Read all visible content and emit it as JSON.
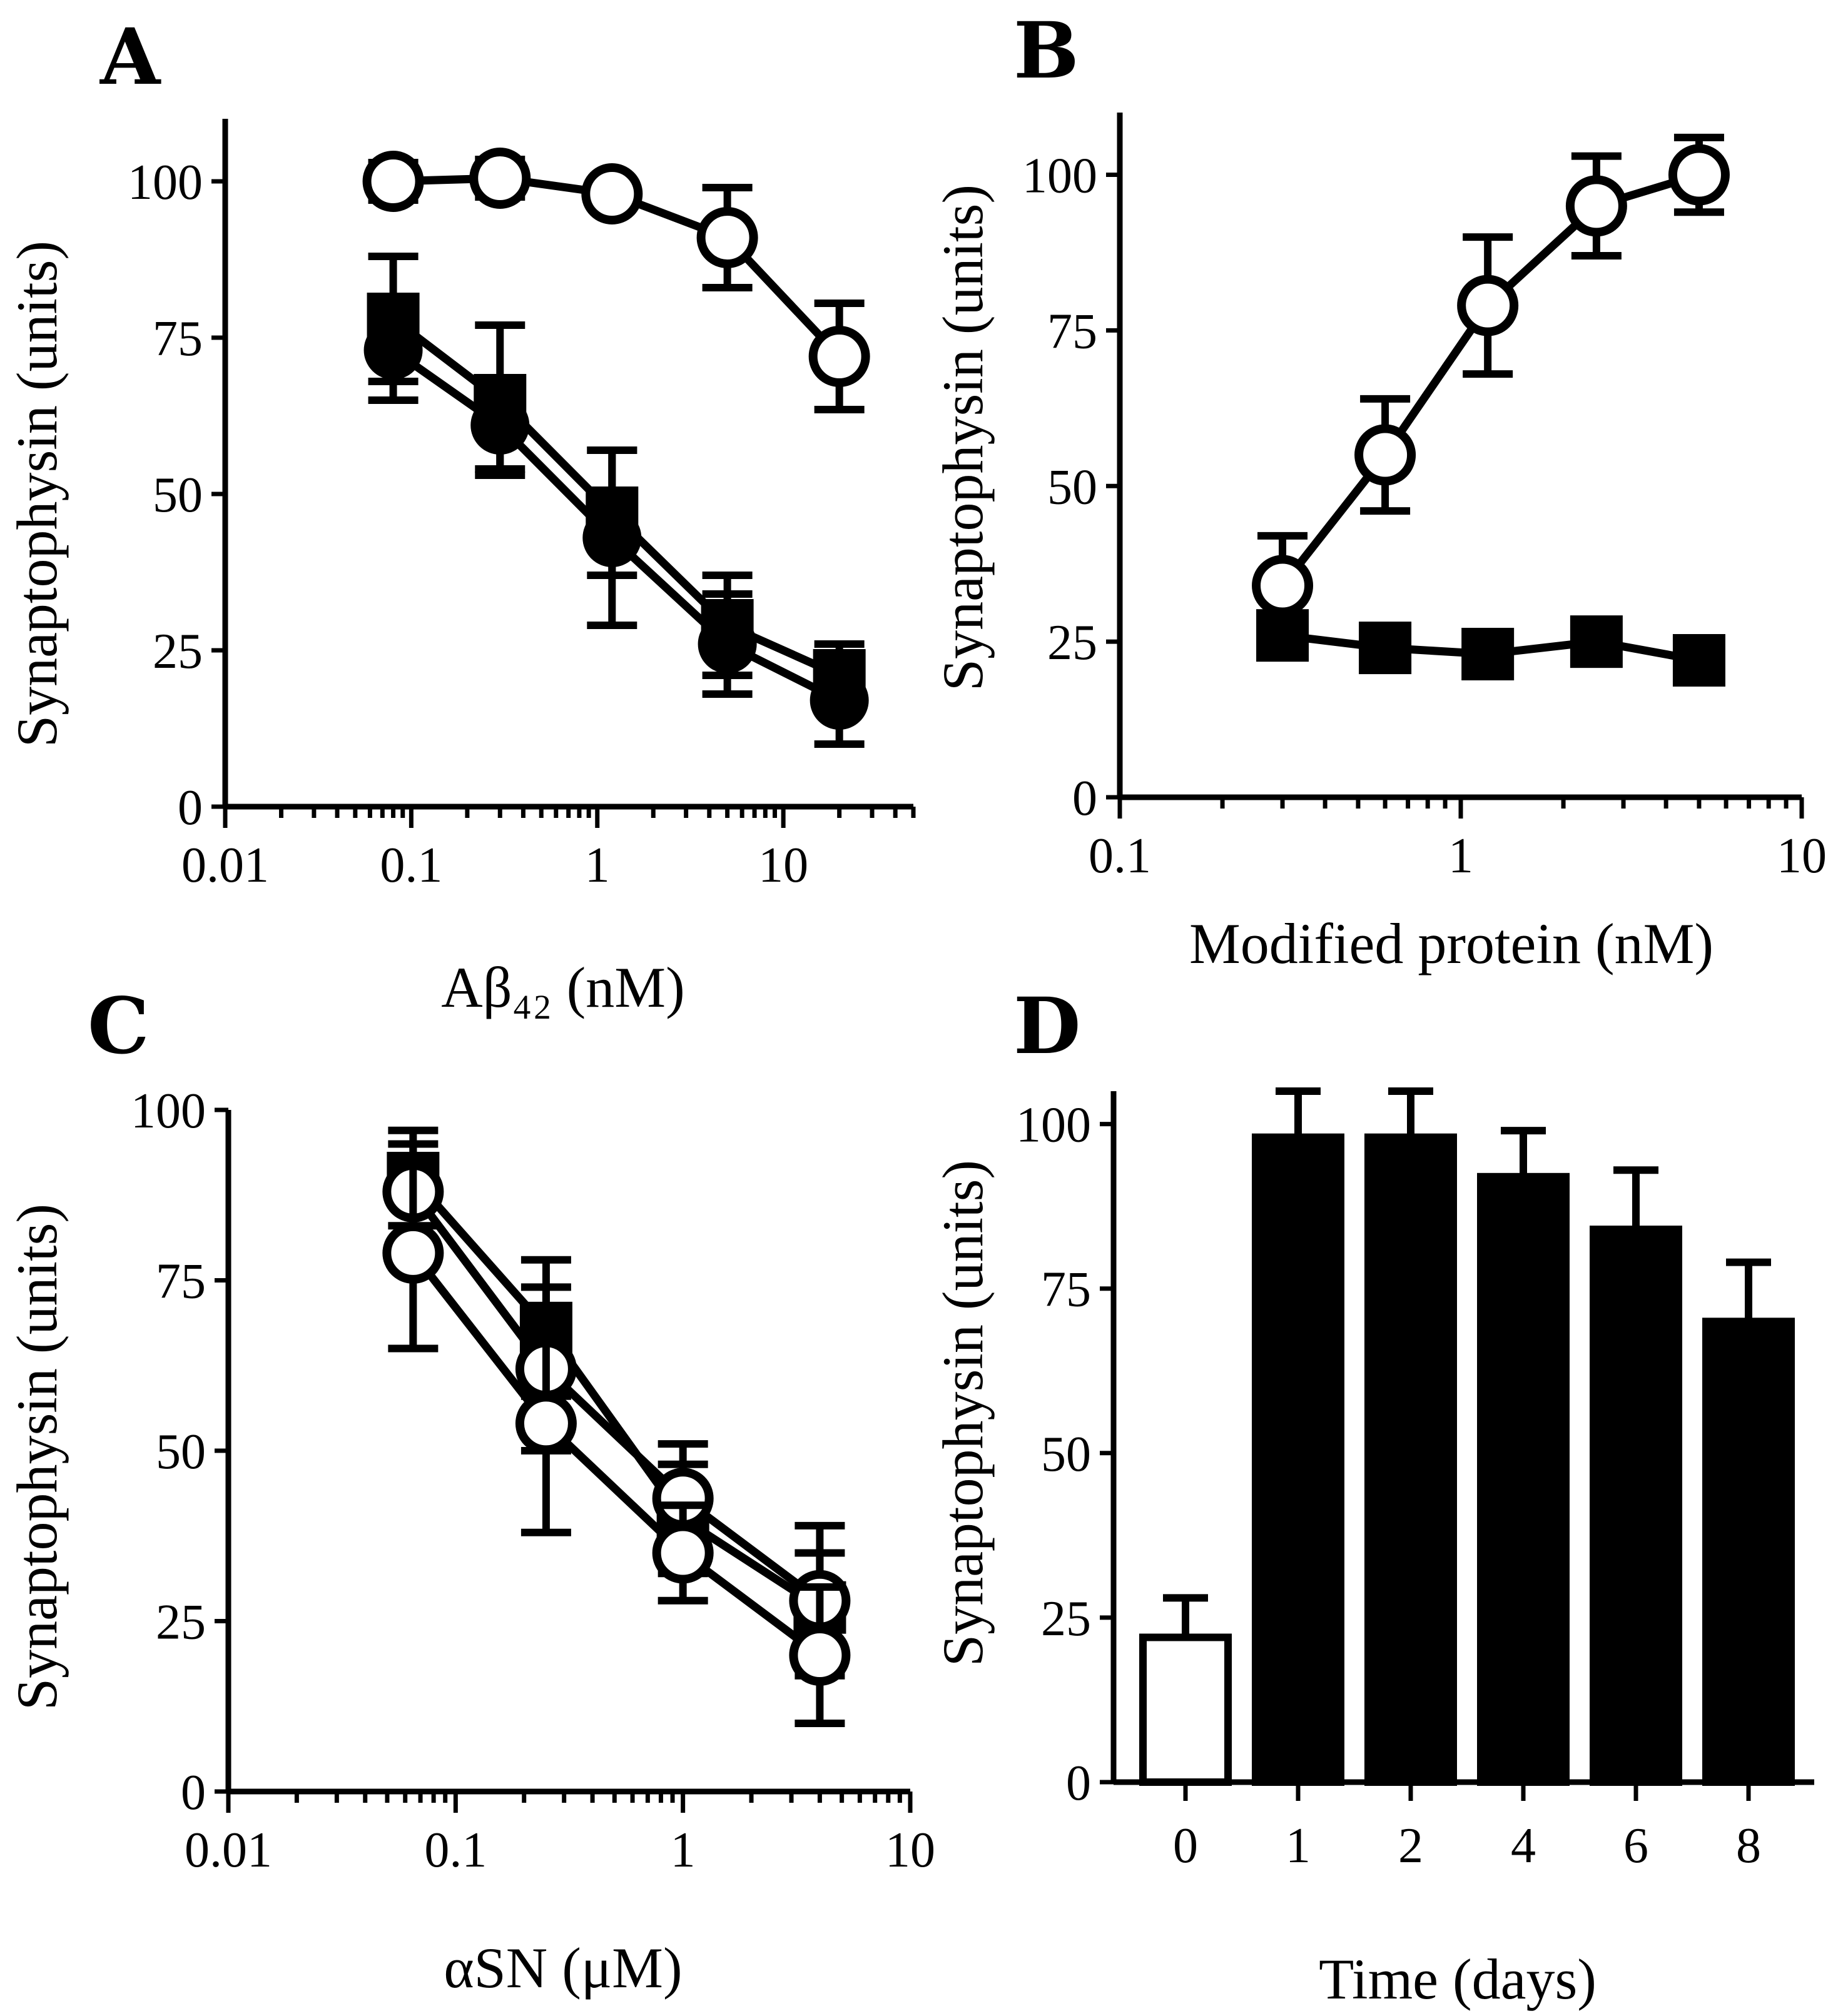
{
  "colors": {
    "ink": "#000000",
    "paper": "#ffffff"
  },
  "chart_data": [
    {
      "panel": "A",
      "type": "line",
      "xscale": "log",
      "xlabel": "Aβ₄₂ (nM)",
      "ylabel": "Synaptophysin (units)",
      "xlim": [
        0.01,
        50
      ],
      "ylim": [
        0,
        110
      ],
      "xticks": [
        "0.01",
        "0.1",
        "1",
        "10"
      ],
      "yticks": [
        "0",
        "25",
        "50",
        "75",
        "100"
      ],
      "series": [
        {
          "marker": "open-circle",
          "x": [
            0.08,
            0.3,
            1.2,
            5,
            20
          ],
          "y": [
            100,
            100.5,
            98,
            91,
            72
          ],
          "err": [
            3,
            3,
            2,
            8,
            8.5
          ]
        },
        {
          "marker": "filled-square",
          "x": [
            0.08,
            0.3,
            1.2,
            5,
            20
          ],
          "y": [
            78,
            65,
            47,
            29,
            21
          ],
          "err": [
            10,
            12,
            10,
            8,
            5
          ]
        },
        {
          "marker": "filled-circle",
          "x": [
            0.08,
            0.3,
            1.2,
            5,
            20
          ],
          "y": [
            73,
            61,
            43,
            26,
            17
          ],
          "err": [
            8,
            7,
            14,
            8,
            7
          ]
        }
      ]
    },
    {
      "panel": "B",
      "type": "line",
      "xscale": "log",
      "xlabel": "Modified protein (nM)",
      "ylabel": "Synaptophysin (units)",
      "xlim": [
        0.1,
        10
      ],
      "ylim": [
        0,
        110
      ],
      "xticks": [
        "0.1",
        "1",
        "10"
      ],
      "yticks": [
        "0",
        "25",
        "50",
        "75",
        "100"
      ],
      "series": [
        {
          "marker": "open-circle",
          "x": [
            0.3,
            0.6,
            1.2,
            2.5,
            5
          ],
          "y": [
            34,
            55,
            79,
            95,
            100
          ],
          "err": [
            8,
            9,
            11,
            8,
            6
          ]
        },
        {
          "marker": "filled-square",
          "x": [
            0.3,
            0.6,
            1.2,
            2.5,
            5
          ],
          "y": [
            26,
            24,
            23,
            25,
            22
          ],
          "err": [
            2,
            2,
            2,
            2,
            2
          ]
        }
      ]
    },
    {
      "panel": "C",
      "type": "line",
      "xscale": "log",
      "xlabel": "αSN (μM)",
      "ylabel": "Synaptophysin (units)",
      "xlim": [
        0.01,
        10
      ],
      "ylim": [
        0,
        100
      ],
      "xticks": [
        "0.01",
        "0.1",
        "1",
        "10"
      ],
      "yticks": [
        "0",
        "25",
        "50",
        "75",
        "100"
      ],
      "series": [
        {
          "marker": "filled-square",
          "x": [
            0.065,
            0.25,
            1,
            4
          ],
          "y": [
            90,
            68,
            40,
            27
          ],
          "err": [
            7,
            10,
            8,
            8
          ]
        },
        {
          "marker": "open-circle",
          "x": [
            0.065,
            0.25,
            1,
            4
          ],
          "y": [
            88,
            62,
            43,
            28
          ],
          "err": [
            7,
            12,
            8,
            11
          ]
        },
        {
          "marker": "open-circle",
          "x": [
            0.065,
            0.25,
            1,
            4
          ],
          "y": [
            79,
            54,
            35,
            20
          ],
          "err": [
            14,
            16,
            7,
            10
          ]
        }
      ]
    },
    {
      "panel": "D",
      "type": "bar",
      "xlabel": "Time (days)",
      "ylabel": "Synaptophysin (units)",
      "categories": [
        "0",
        "1",
        "2",
        "4",
        "6",
        "8"
      ],
      "values": [
        22,
        98,
        98,
        92,
        84,
        70
      ],
      "err": [
        6,
        7,
        7,
        7,
        9,
        9
      ],
      "fills": [
        "open",
        "filled",
        "filled",
        "filled",
        "filled",
        "filled"
      ],
      "ylim": [
        0,
        105
      ],
      "yticks": [
        "0",
        "25",
        "50",
        "75",
        "100"
      ]
    }
  ]
}
